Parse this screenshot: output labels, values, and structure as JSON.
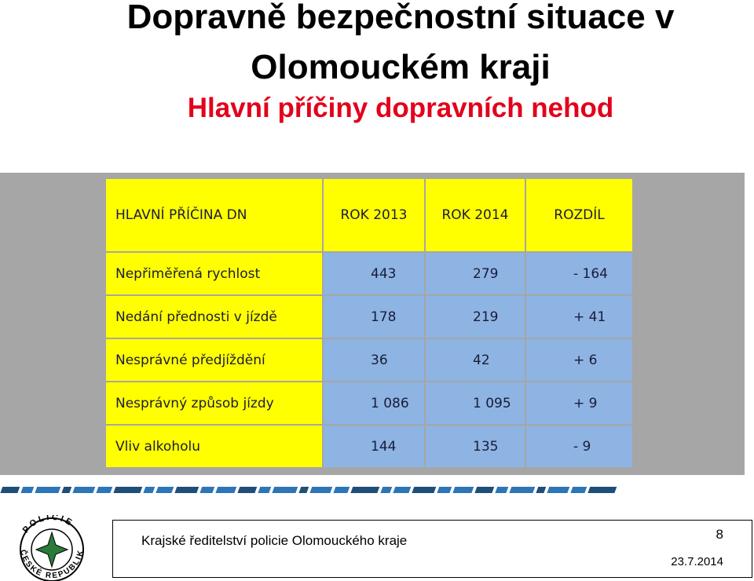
{
  "title": [
    "Dopravně bezpečnostní situace v",
    "Olomouckém kraji"
  ],
  "subtitle": "Hlavní příčiny dopravních nehod",
  "table": {
    "header": [
      "HLAVNÍ PŘÍČINA DN",
      "ROK 2013",
      "ROK 2014",
      "ROZDÍL"
    ],
    "rows": [
      [
        "Nepřiměřená rychlost",
        "443",
        "279",
        "- 164"
      ],
      [
        "Nedání přednosti v jízdě",
        "178",
        "219",
        "+ 41"
      ],
      [
        "Nesprávné předjíždění",
        "36",
        "42",
        "+ 6"
      ],
      [
        "Nesprávný způsob jízdy",
        "1 086",
        "1 095",
        "+ 9"
      ],
      [
        "Vliv alkoholu",
        "144",
        "135",
        "- 9"
      ]
    ]
  },
  "footer": {
    "organization": "Krajské ředitelství policie Olomouckého kraje",
    "page": "8",
    "date": "23.7.2014",
    "logo": [
      "POLICIE",
      "ČESKÉ REPUBLIKY"
    ]
  }
}
